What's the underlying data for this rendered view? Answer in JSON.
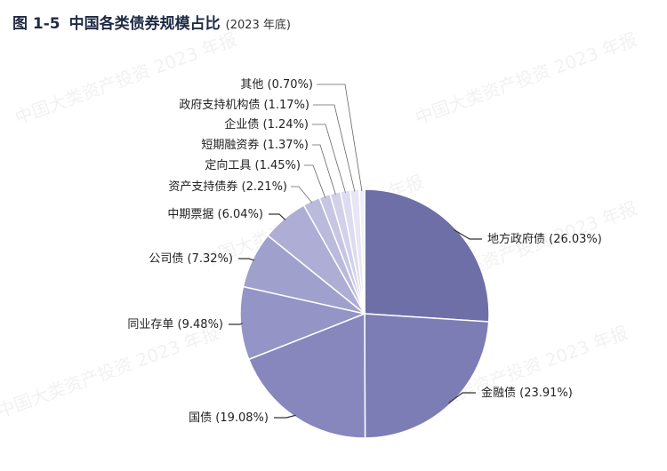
{
  "header": {
    "figure_no": "图 1-5",
    "title": "中国各类债券规模占比",
    "subtitle": "(2023 年底)"
  },
  "watermark": "中国大类资产投资 2023 年报",
  "chart_data": {
    "type": "pie",
    "title": "中国各类债券规模占比",
    "subtitle": "(2023 年底)",
    "slices": [
      {
        "label": "地方政府债 (26.03%)",
        "value": 26.03,
        "color": "#6f6fa8"
      },
      {
        "label": "金融债 (23.91%)",
        "value": 23.91,
        "color": "#7d7db5"
      },
      {
        "label": "国债 (19.08%)",
        "value": 19.08,
        "color": "#8787bd"
      },
      {
        "label": "同业存单 (9.48%)",
        "value": 9.48,
        "color": "#9494c6"
      },
      {
        "label": "公司债 (7.32%)",
        "value": 7.32,
        "color": "#a0a0cd"
      },
      {
        "label": "中期票据 (6.04%)",
        "value": 6.04,
        "color": "#adadd5"
      },
      {
        "label": "资产支持债券 (2.21%)",
        "value": 2.21,
        "color": "#babadd"
      },
      {
        "label": "定向工具 (1.45%)",
        "value": 1.45,
        "color": "#c6c6e4"
      },
      {
        "label": "短期融资券 (1.37%)",
        "value": 1.37,
        "color": "#d1d1ea"
      },
      {
        "label": "企业债 (1.24%)",
        "value": 1.24,
        "color": "#dcdcf0"
      },
      {
        "label": "政府支持机构债 (1.17%)",
        "value": 1.17,
        "color": "#e6e6f4"
      },
      {
        "label": "其他 (0.70%)",
        "value": 0.7,
        "color": "#f0f0f8"
      }
    ]
  }
}
